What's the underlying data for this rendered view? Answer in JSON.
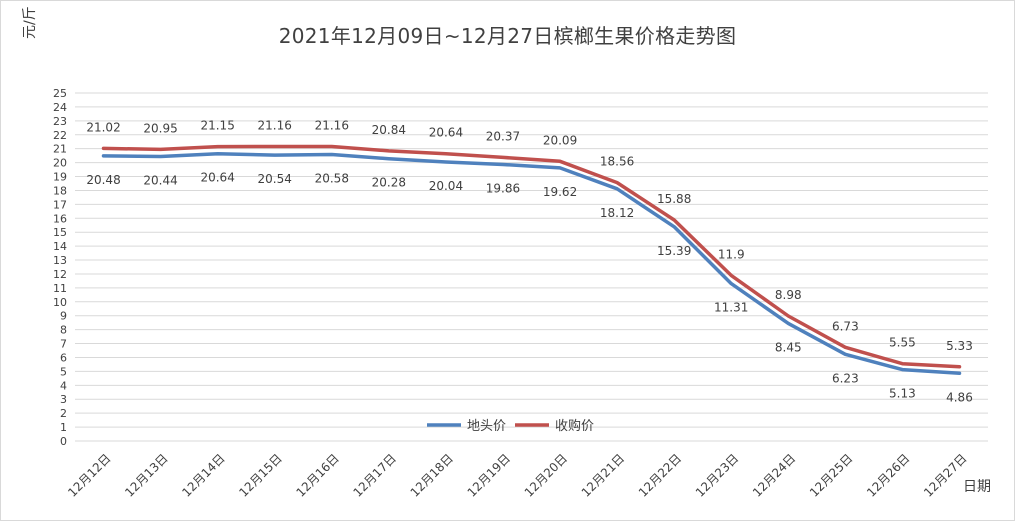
{
  "chart_data": {
    "type": "line",
    "title": "2021年12月09日~12月27日槟榔生果价格走势图",
    "ylabel": "元/斤",
    "xlabel": "日期",
    "ylim": [
      0,
      25
    ],
    "yticks": [
      0,
      1,
      2,
      3,
      4,
      5,
      6,
      7,
      8,
      9,
      10,
      11,
      12,
      13,
      14,
      15,
      16,
      17,
      18,
      19,
      20,
      21,
      22,
      23,
      24,
      25
    ],
    "grid": true,
    "legend_position": "bottom-center",
    "categories": [
      "12月12日",
      "12月13日",
      "12月14日",
      "12月15日",
      "12月16日",
      "12月17日",
      "12月18日",
      "12月19日",
      "12月20日",
      "12月21日",
      "12月22日",
      "12月23日",
      "12月24日",
      "12月25日",
      "12月26日",
      "12月27日"
    ],
    "series": [
      {
        "name": "地头价",
        "color": "#4f81bd",
        "values": [
          20.48,
          20.44,
          20.64,
          20.54,
          20.58,
          20.28,
          20.04,
          19.86,
          19.62,
          18.12,
          15.39,
          11.31,
          8.45,
          6.23,
          5.13,
          4.86
        ]
      },
      {
        "name": "收购价",
        "color": "#c0504d",
        "values": [
          21.02,
          20.95,
          21.15,
          21.16,
          21.16,
          20.84,
          20.64,
          20.37,
          20.09,
          18.56,
          15.88,
          11.9,
          8.98,
          6.73,
          5.55,
          5.33
        ]
      }
    ]
  }
}
